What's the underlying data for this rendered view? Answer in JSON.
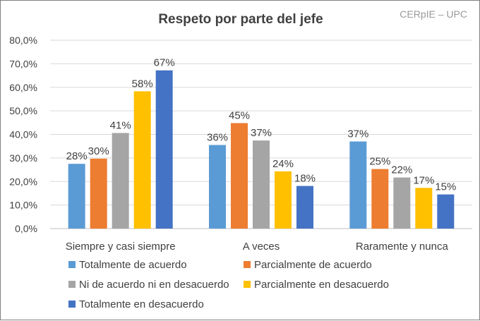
{
  "chart_data": {
    "type": "bar",
    "title": "Respeto por parte del jefe",
    "watermark": "CERpIE – UPC",
    "categories": [
      "Siempre y casi siempre",
      "A veces",
      "Raramente y nunca"
    ],
    "ylim": [
      0,
      80
    ],
    "yticks": [
      0,
      10,
      20,
      30,
      40,
      50,
      60,
      70,
      80
    ],
    "ytick_labels": [
      "0,0%",
      "10,0%",
      "20,0%",
      "30,0%",
      "40,0%",
      "50,0%",
      "60,0%",
      "70,0%",
      "80,0%"
    ],
    "grid": true,
    "legend_position": "bottom",
    "series": [
      {
        "name": "Totalmente de acuerdo",
        "color": "#5b9bd5",
        "values": [
          27.5,
          35.5,
          37
        ],
        "labels": [
          "28%",
          "36%",
          "37%"
        ]
      },
      {
        "name": "Parcialmente de acuerdo",
        "color": "#ed7d31",
        "values": [
          29.7,
          44.8,
          25.3
        ],
        "labels": [
          "30%",
          "45%",
          "25%"
        ]
      },
      {
        "name": "Ni de acuerdo ni en desacuerdo",
        "color": "#a5a5a5",
        "values": [
          40.6,
          37.4,
          21.7
        ],
        "labels": [
          "41%",
          "37%",
          "22%"
        ]
      },
      {
        "name": "Parcialmente en desacuerdo",
        "color": "#ffc000",
        "values": [
          58.3,
          24.3,
          17.3
        ],
        "labels": [
          "58%",
          "24%",
          "17%"
        ]
      },
      {
        "name": "Totalmente en desacuerdo",
        "color": "#4472c4",
        "values": [
          67.2,
          18.1,
          14.5
        ],
        "labels": [
          "67%",
          "18%",
          "15%"
        ]
      }
    ]
  }
}
